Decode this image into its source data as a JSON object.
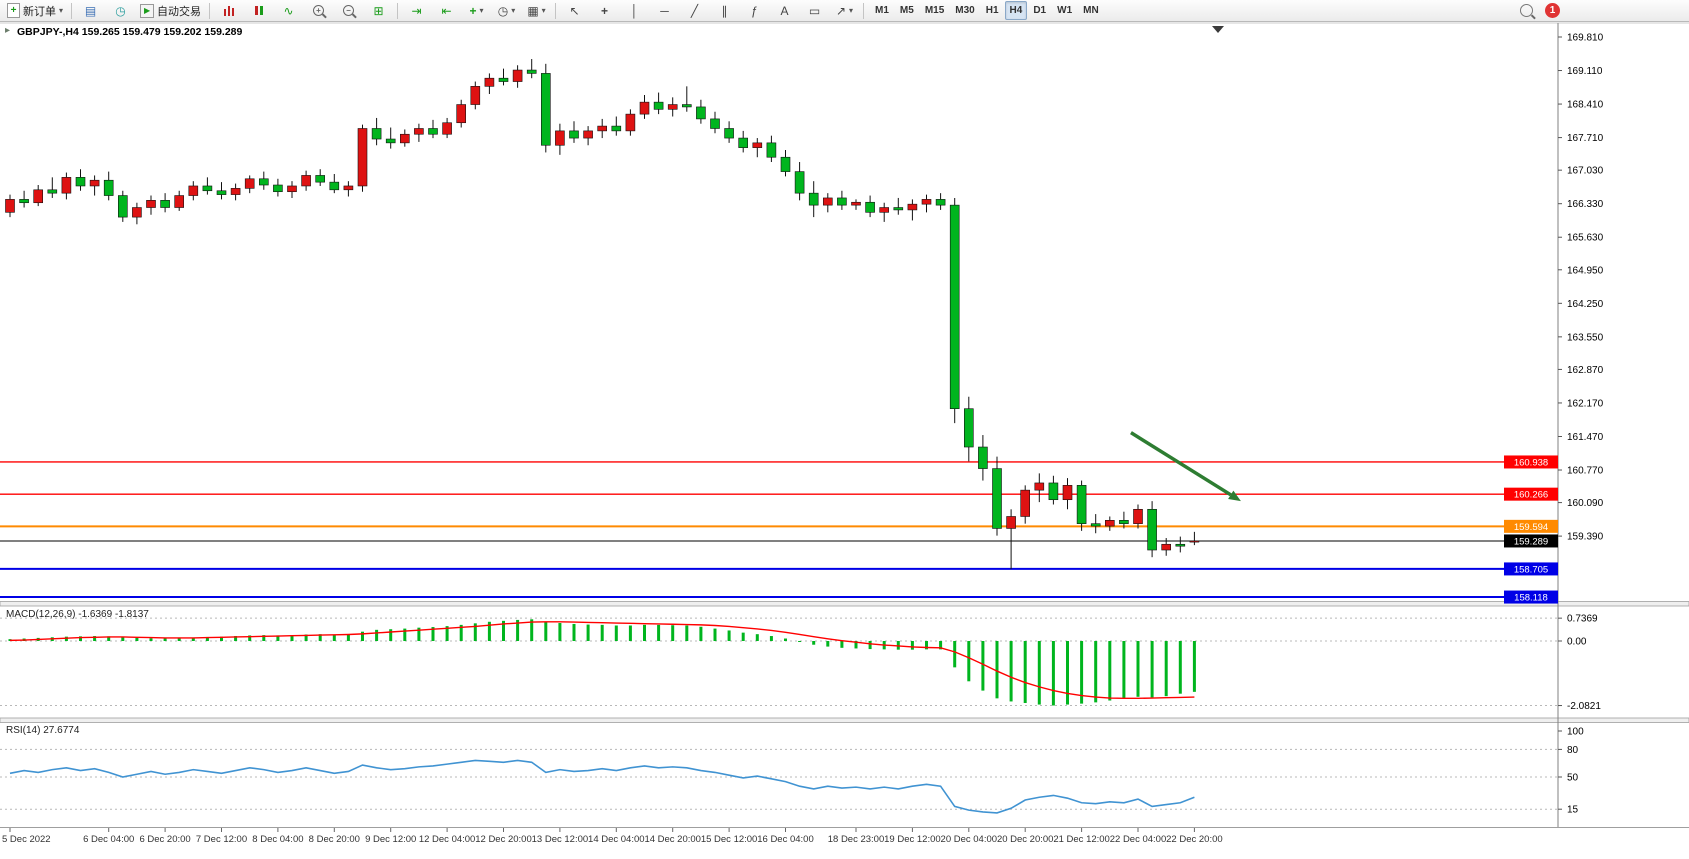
{
  "toolbar": {
    "new_order_label": "新订单",
    "autotrading_label": "自动交易",
    "timeframes": [
      "M1",
      "M5",
      "M15",
      "M30",
      "H1",
      "H4",
      "D1",
      "W1",
      "MN"
    ],
    "active_timeframe": "H4",
    "notification_count": "1"
  },
  "icons": {
    "oct_caret": "▸",
    "new_order_plus": "+",
    "dropdown_caret": "▾",
    "profile": "▤",
    "market_watch": "◷",
    "autotrading_play": "▶",
    "line_chart": "∿",
    "zoom_in_sign": "+",
    "zoom_out_sign": "−",
    "tile_windows": "⊞",
    "auto_scroll": "⇥",
    "chart_shift": "⇤",
    "indicators_plus": "+",
    "periods_clock": "◷",
    "templates": "▦",
    "cursor": "↖",
    "crosshair": "+",
    "vertical_line": "│",
    "horizontal_line": "─",
    "trendline": "╱",
    "channel": "∥",
    "fibonacci": "ƒ",
    "text_tool": "A",
    "label_tool": "▭",
    "arrows_tool": "↗"
  },
  "chart": {
    "symbol_header": "GBPJPY-,H4 159.265 159.479 159.202 159.289",
    "macd_label": "MACD(12,26,9) -1.6369 -1.8137",
    "rsi_label": "RSI(14) 27.6774"
  },
  "chart_data": [
    {
      "type": "candlestick",
      "symbol": "GBPJPY-",
      "timeframe": "H4",
      "open": 159.265,
      "high": 159.479,
      "low": 159.202,
      "close": 159.289,
      "colors": {
        "bull": "#DE1212",
        "bear": "#00B51E",
        "wick": "#111111"
      },
      "candles": [
        [
          166.15,
          166.52,
          166.05,
          166.42
        ],
        [
          166.42,
          166.6,
          166.25,
          166.35
        ],
        [
          166.35,
          166.72,
          166.28,
          166.62
        ],
        [
          166.62,
          166.88,
          166.45,
          166.55
        ],
        [
          166.55,
          166.98,
          166.42,
          166.88
        ],
        [
          166.88,
          167.05,
          166.6,
          166.7
        ],
        [
          166.7,
          166.92,
          166.5,
          166.82
        ],
        [
          166.82,
          167.0,
          166.4,
          166.5
        ],
        [
          166.5,
          166.6,
          165.95,
          166.05
        ],
        [
          166.05,
          166.35,
          165.9,
          166.25
        ],
        [
          166.25,
          166.5,
          166.1,
          166.4
        ],
        [
          166.4,
          166.55,
          166.15,
          166.25
        ],
        [
          166.25,
          166.6,
          166.18,
          166.5
        ],
        [
          166.5,
          166.8,
          166.4,
          166.7
        ],
        [
          166.7,
          166.88,
          166.52,
          166.6
        ],
        [
          166.6,
          166.78,
          166.42,
          166.52
        ],
        [
          166.52,
          166.75,
          166.4,
          166.65
        ],
        [
          166.65,
          166.92,
          166.55,
          166.85
        ],
        [
          166.85,
          167.0,
          166.62,
          166.72
        ],
        [
          166.72,
          166.85,
          166.48,
          166.58
        ],
        [
          166.58,
          166.8,
          166.45,
          166.7
        ],
        [
          166.7,
          167.02,
          166.6,
          166.92
        ],
        [
          166.92,
          167.05,
          166.7,
          166.78
        ],
        [
          166.78,
          166.95,
          166.55,
          166.62
        ],
        [
          166.62,
          166.8,
          166.48,
          166.7
        ],
        [
          166.7,
          167.98,
          166.58,
          167.9
        ],
        [
          167.9,
          168.12,
          167.55,
          167.68
        ],
        [
          167.68,
          167.92,
          167.48,
          167.6
        ],
        [
          167.6,
          167.88,
          167.52,
          167.78
        ],
        [
          167.78,
          168.0,
          167.62,
          167.9
        ],
        [
          167.9,
          168.08,
          167.7,
          167.78
        ],
        [
          167.78,
          168.12,
          167.7,
          168.02
        ],
        [
          168.02,
          168.5,
          167.92,
          168.4
        ],
        [
          168.4,
          168.88,
          168.3,
          168.78
        ],
        [
          168.78,
          169.05,
          168.62,
          168.95
        ],
        [
          168.95,
          169.15,
          168.8,
          168.88
        ],
        [
          168.88,
          169.22,
          168.75,
          169.12
        ],
        [
          169.12,
          169.35,
          168.95,
          169.05
        ],
        [
          169.05,
          169.25,
          167.4,
          167.55
        ],
        [
          167.55,
          168.0,
          167.35,
          167.85
        ],
        [
          167.85,
          168.05,
          167.6,
          167.7
        ],
        [
          167.7,
          167.95,
          167.55,
          167.85
        ],
        [
          167.85,
          168.1,
          167.7,
          167.95
        ],
        [
          167.95,
          168.15,
          167.75,
          167.85
        ],
        [
          167.85,
          168.3,
          167.75,
          168.2
        ],
        [
          168.2,
          168.6,
          168.1,
          168.45
        ],
        [
          168.45,
          168.65,
          168.2,
          168.3
        ],
        [
          168.3,
          168.55,
          168.15,
          168.4
        ],
        [
          168.4,
          168.78,
          168.25,
          168.35
        ],
        [
          168.35,
          168.5,
          168.0,
          168.1
        ],
        [
          168.1,
          168.25,
          167.8,
          167.9
        ],
        [
          167.9,
          168.05,
          167.6,
          167.7
        ],
        [
          167.7,
          167.85,
          167.4,
          167.5
        ],
        [
          167.5,
          167.7,
          167.3,
          167.6
        ],
        [
          167.6,
          167.75,
          167.2,
          167.3
        ],
        [
          167.3,
          167.45,
          166.9,
          167.0
        ],
        [
          167.0,
          167.2,
          166.4,
          166.55
        ],
        [
          166.55,
          166.8,
          166.05,
          166.3
        ],
        [
          166.3,
          166.55,
          166.15,
          166.45
        ],
        [
          166.45,
          166.6,
          166.2,
          166.3
        ],
        [
          166.3,
          166.42,
          166.2,
          166.36
        ],
        [
          166.36,
          166.5,
          166.05,
          166.15
        ],
        [
          166.15,
          166.35,
          165.95,
          166.25
        ],
        [
          166.25,
          166.45,
          166.1,
          166.2
        ],
        [
          166.2,
          166.42,
          165.98,
          166.32
        ],
        [
          166.32,
          166.52,
          166.15,
          166.42
        ],
        [
          166.42,
          166.55,
          166.2,
          166.3
        ],
        [
          166.3,
          166.45,
          161.75,
          162.05
        ],
        [
          162.05,
          162.3,
          160.95,
          161.25
        ],
        [
          161.25,
          161.5,
          160.55,
          160.8
        ],
        [
          160.8,
          161.05,
          159.4,
          159.55
        ],
        [
          159.55,
          159.95,
          158.7,
          159.8
        ],
        [
          159.8,
          160.45,
          159.65,
          160.35
        ],
        [
          160.35,
          160.7,
          160.1,
          160.5
        ],
        [
          160.5,
          160.65,
          160.05,
          160.15
        ],
        [
          160.15,
          160.6,
          159.95,
          160.45
        ],
        [
          160.45,
          160.55,
          159.5,
          159.65
        ],
        [
          159.65,
          159.85,
          159.45,
          159.6
        ],
        [
          159.6,
          159.8,
          159.5,
          159.72
        ],
        [
          159.72,
          159.9,
          159.55,
          159.65
        ],
        [
          159.65,
          160.05,
          159.55,
          159.95
        ],
        [
          159.95,
          160.12,
          158.95,
          159.1
        ],
        [
          159.1,
          159.35,
          158.98,
          159.22
        ],
        [
          159.22,
          159.38,
          159.05,
          159.18
        ],
        [
          159.265,
          159.479,
          159.202,
          159.289
        ]
      ],
      "y_axis_labels": [
        "169.810",
        "169.110",
        "168.410",
        "167.710",
        "167.030",
        "166.330",
        "165.630",
        "164.950",
        "164.250",
        "163.550",
        "162.870",
        "162.170",
        "161.470",
        "160.770",
        "160.090",
        "159.390"
      ],
      "x_axis_labels": [
        {
          "index": 0,
          "label": "5 Dec 2022"
        },
        {
          "index": 7,
          "label": "6 Dec 04:00"
        },
        {
          "index": 11,
          "label": "6 Dec 20:00"
        },
        {
          "index": 15,
          "label": "7 Dec 12:00"
        },
        {
          "index": 19,
          "label": "8 Dec 04:00"
        },
        {
          "index": 23,
          "label": "8 Dec 20:00"
        },
        {
          "index": 27,
          "label": "9 Dec 12:00"
        },
        {
          "index": 31,
          "label": "12 Dec 04:00"
        },
        {
          "index": 35,
          "label": "12 Dec 20:00"
        },
        {
          "index": 39,
          "label": "13 Dec 12:00"
        },
        {
          "index": 43,
          "label": "14 Dec 04:00"
        },
        {
          "index": 47,
          "label": "14 Dec 20:00"
        },
        {
          "index": 51,
          "label": "15 Dec 12:00"
        },
        {
          "index": 55,
          "label": "16 Dec 04:00"
        },
        {
          "index": 60,
          "label": "18 Dec 23:00"
        },
        {
          "index": 64,
          "label": "19 Dec 12:00"
        },
        {
          "index": 68,
          "label": "20 Dec 04:00"
        },
        {
          "index": 72,
          "label": "20 Dec 20:00"
        },
        {
          "index": 76,
          "label": "21 Dec 12:00"
        },
        {
          "index": 80,
          "label": "22 Dec 04:00"
        },
        {
          "index": 84,
          "label": "22 Dec 20:00"
        }
      ],
      "levels": [
        {
          "price": 160.938,
          "label": "160.938",
          "color": "#FF0000",
          "width": 1.4
        },
        {
          "price": 160.266,
          "label": "160.266",
          "color": "#FF0000",
          "width": 1.4
        },
        {
          "price": 159.594,
          "label": "159.594",
          "color": "#FF8A00",
          "width": 2
        },
        {
          "price": 158.705,
          "label": "158.705",
          "color": "#0000E6",
          "width": 2
        },
        {
          "price": 158.118,
          "label": "158.118",
          "color": "#0000E6",
          "width": 2
        }
      ],
      "current_price": {
        "value": 159.289,
        "label": "159.289",
        "color": "#000000"
      },
      "arrow": {
        "from": {
          "index": 79.5,
          "price": 161.55
        },
        "to": {
          "index": 87.3,
          "price": 160.12
        },
        "color": "#2E7D32"
      }
    },
    {
      "type": "bar",
      "name": "MACD",
      "params": "12,26,9",
      "macd_value": -1.6369,
      "signal_value": -1.8137,
      "colors": {
        "histogram": "#00B51E",
        "signal": "#FF0000"
      },
      "axis": [
        0.7369,
        0,
        -2.0821
      ],
      "axis_labels": [
        "0.7369",
        "0.00",
        "-2.0821"
      ],
      "histogram": [
        0.06,
        0.08,
        0.1,
        0.12,
        0.14,
        0.15,
        0.16,
        0.15,
        0.12,
        0.1,
        0.09,
        0.08,
        0.09,
        0.11,
        0.13,
        0.14,
        0.16,
        0.18,
        0.19,
        0.18,
        0.19,
        0.21,
        0.22,
        0.21,
        0.22,
        0.3,
        0.36,
        0.38,
        0.4,
        0.43,
        0.45,
        0.48,
        0.52,
        0.57,
        0.62,
        0.65,
        0.68,
        0.7,
        0.62,
        0.58,
        0.55,
        0.53,
        0.52,
        0.5,
        0.5,
        0.52,
        0.52,
        0.51,
        0.5,
        0.46,
        0.4,
        0.34,
        0.27,
        0.22,
        0.16,
        0.08,
        -0.02,
        -0.12,
        -0.18,
        -0.22,
        -0.24,
        -0.26,
        -0.27,
        -0.28,
        -0.28,
        -0.27,
        -0.27,
        -0.85,
        -1.3,
        -1.6,
        -1.85,
        -1.95,
        -2.0,
        -2.05,
        -2.08,
        -2.05,
        -2.02,
        -1.98,
        -1.92,
        -1.85,
        -1.8,
        -1.82,
        -1.78,
        -1.7,
        -1.64
      ],
      "signal": [
        0.02,
        0.03,
        0.05,
        0.07,
        0.09,
        0.11,
        0.12,
        0.13,
        0.13,
        0.12,
        0.11,
        0.1,
        0.1,
        0.1,
        0.11,
        0.12,
        0.13,
        0.14,
        0.15,
        0.16,
        0.17,
        0.18,
        0.19,
        0.2,
        0.21,
        0.23,
        0.26,
        0.29,
        0.32,
        0.35,
        0.38,
        0.41,
        0.44,
        0.47,
        0.51,
        0.55,
        0.58,
        0.61,
        0.62,
        0.62,
        0.61,
        0.6,
        0.59,
        0.58,
        0.57,
        0.56,
        0.55,
        0.54,
        0.53,
        0.52,
        0.5,
        0.47,
        0.43,
        0.39,
        0.34,
        0.28,
        0.21,
        0.14,
        0.07,
        0.01,
        -0.04,
        -0.09,
        -0.13,
        -0.16,
        -0.19,
        -0.21,
        -0.22,
        -0.35,
        -0.54,
        -0.75,
        -0.97,
        -1.17,
        -1.34,
        -1.48,
        -1.6,
        -1.69,
        -1.76,
        -1.81,
        -1.84,
        -1.85,
        -1.85,
        -1.84,
        -1.83,
        -1.82,
        -1.81
      ]
    },
    {
      "type": "line",
      "name": "RSI",
      "params": "14",
      "value": 27.6774,
      "colors": {
        "line": "#4093D2"
      },
      "axis": [
        100,
        80,
        50,
        15
      ],
      "axis_labels": [
        "100",
        "80",
        "50",
        "15"
      ],
      "values": [
        54,
        57,
        55,
        58,
        60,
        57,
        59,
        55,
        50,
        53,
        56,
        53,
        55,
        58,
        56,
        54,
        57,
        60,
        58,
        55,
        57,
        60,
        57,
        54,
        56,
        63,
        60,
        58,
        59,
        61,
        62,
        64,
        66,
        68,
        67,
        66,
        68,
        66,
        55,
        58,
        56,
        57,
        59,
        57,
        60,
        62,
        60,
        61,
        60,
        57,
        55,
        52,
        49,
        51,
        48,
        45,
        40,
        37,
        40,
        38,
        39,
        37,
        39,
        37,
        40,
        42,
        40,
        18,
        14,
        12,
        11,
        16,
        25,
        28,
        30,
        27,
        22,
        21,
        23,
        22,
        26,
        18,
        20,
        22,
        28
      ]
    }
  ]
}
